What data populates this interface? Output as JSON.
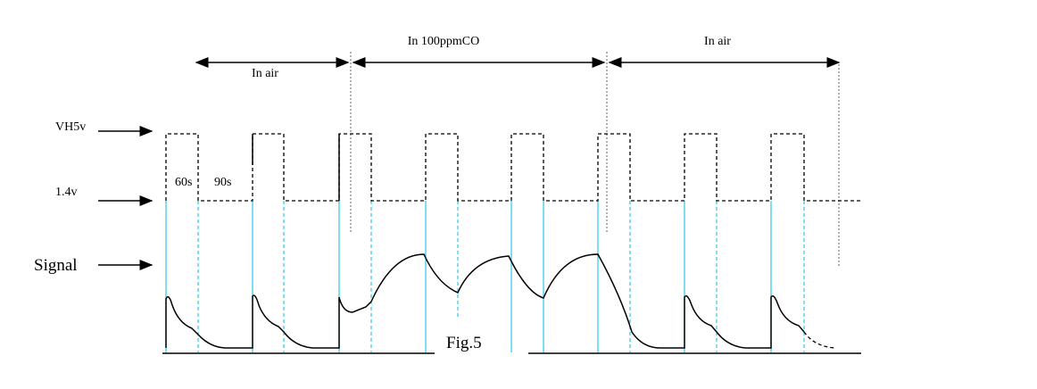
{
  "phases": [
    "In air",
    "In 100ppmCO",
    "In air"
  ],
  "levels": {
    "high": "VH5v",
    "low": "1.4v",
    "signal": "Signal"
  },
  "durations": [
    "60s",
    "90s"
  ],
  "caption": "Fig.5"
}
